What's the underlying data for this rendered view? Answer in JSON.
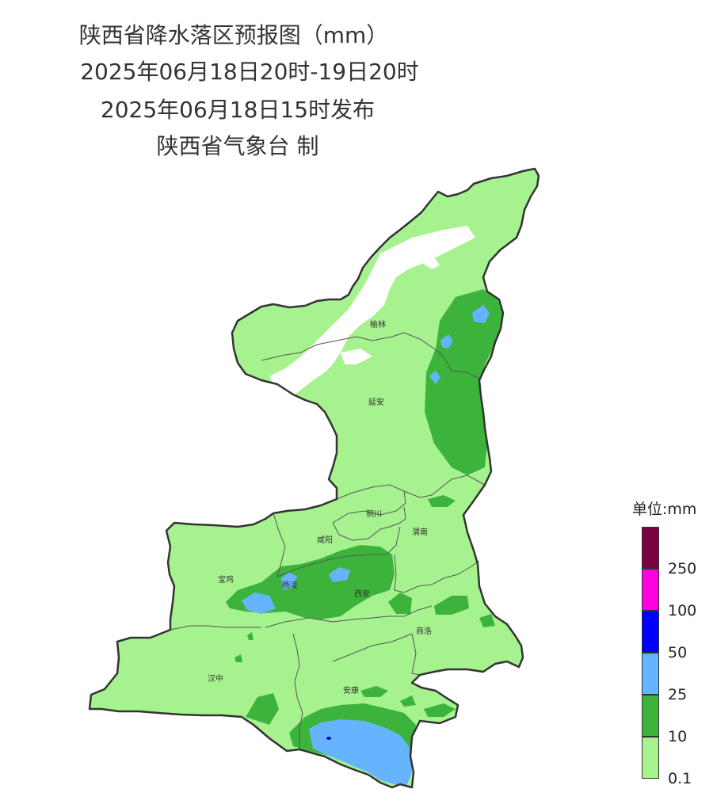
{
  "title": {
    "line1": "陕西省降水落区预报图（mm）",
    "line2": "2025年06月18日20时-19日20时",
    "line3": "2025年06月18日15时发布",
    "line4": "陕西省气象台 制"
  },
  "cities": [
    "榆林",
    "延安",
    "铜川",
    "咸阳",
    "渭南",
    "宝鸡",
    "杨凌",
    "西安",
    "商洛",
    "汉中",
    "安康"
  ],
  "legend": {
    "title": "单位:mm",
    "levels": [
      {
        "color": "#7a0040",
        "label": ""
      },
      {
        "color": "#ff00e0",
        "label": "250"
      },
      {
        "color": "#0000ff",
        "label": "100"
      },
      {
        "color": "#66b4ff",
        "label": "50"
      },
      {
        "color": "#3cb43c",
        "label": "25"
      },
      {
        "color": "#a6f28f",
        "label": "10"
      }
    ],
    "bottom_label": "0.1"
  },
  "colors": {
    "light_green": "#a6f28f",
    "green": "#3cb43c",
    "blue": "#66b4ff",
    "dark_blue": "#0000ff",
    "boundary": "#333333"
  }
}
